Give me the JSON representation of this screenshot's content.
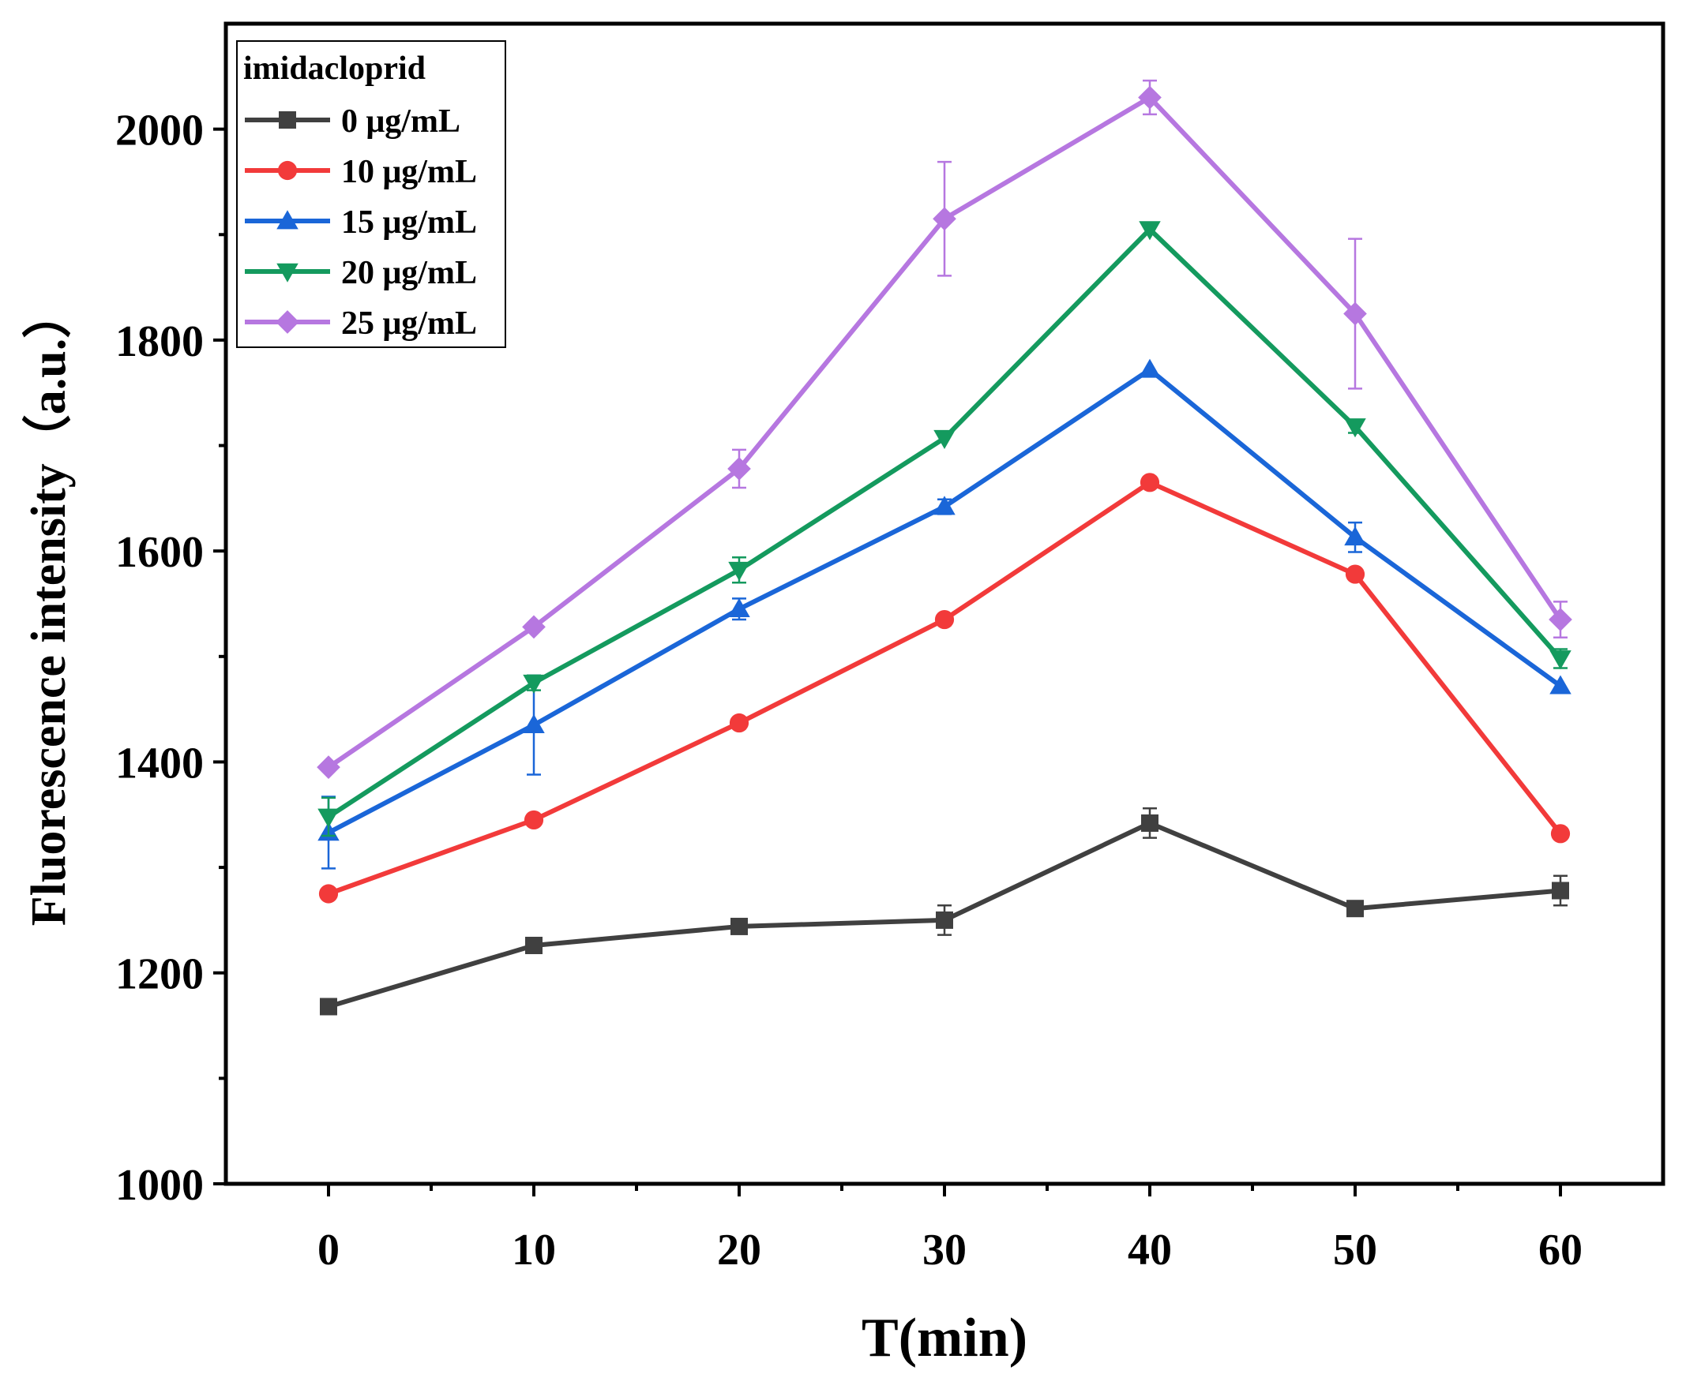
{
  "chart_data": {
    "type": "line",
    "xlabel": "T(min)",
    "ylabel": "Fluorescence intensity（a.u.）",
    "xlim": [
      -5,
      65
    ],
    "ylim": [
      1000,
      2100
    ],
    "x_ticks": [
      0,
      10,
      20,
      30,
      40,
      50,
      60
    ],
    "x_tick_labels": [
      "0",
      "10",
      "20",
      "30",
      "40",
      "50",
      "60"
    ],
    "y_ticks": [
      1000,
      1200,
      1400,
      1600,
      1800,
      2000
    ],
    "y_tick_labels": [
      "1000",
      "1200",
      "1400",
      "1600",
      "1800",
      "2000"
    ],
    "grid": false,
    "legend": {
      "title": "imidacloprid",
      "placement": "top-left"
    },
    "x": [
      0,
      10,
      20,
      30,
      40,
      50,
      60
    ],
    "series": [
      {
        "name": "0 μg/mL",
        "color": "#404040",
        "marker": "square",
        "values": [
          1168,
          1226,
          1244,
          1250,
          1342,
          1261,
          1278
        ],
        "errors": [
          5,
          6,
          5,
          14,
          14,
          6,
          14
        ]
      },
      {
        "name": "10 μg/mL",
        "color": "#f23a3a",
        "marker": "circle",
        "values": [
          1275,
          1345,
          1437,
          1535,
          1665,
          1578,
          1332
        ],
        "errors": [
          0,
          0,
          0,
          0,
          0,
          0,
          0
        ]
      },
      {
        "name": "15 μg/mL",
        "color": "#1a66d8",
        "marker": "triangle-up",
        "values": [
          1333,
          1435,
          1545,
          1642,
          1772,
          1613,
          1472
        ],
        "errors": [
          34,
          47,
          10,
          7,
          0,
          14,
          0
        ]
      },
      {
        "name": "20 μg/mL",
        "color": "#149a5e",
        "marker": "triangle-down",
        "values": [
          1348,
          1475,
          1582,
          1707,
          1905,
          1718,
          1498
        ],
        "errors": [
          18,
          7,
          12,
          0,
          0,
          6,
          9
        ]
      },
      {
        "name": "25 μg/mL",
        "color": "#b677e0",
        "marker": "diamond",
        "values": [
          1395,
          1528,
          1678,
          1915,
          2030,
          1825,
          1535
        ],
        "errors": [
          0,
          0,
          18,
          54,
          16,
          71,
          17
        ]
      }
    ]
  }
}
